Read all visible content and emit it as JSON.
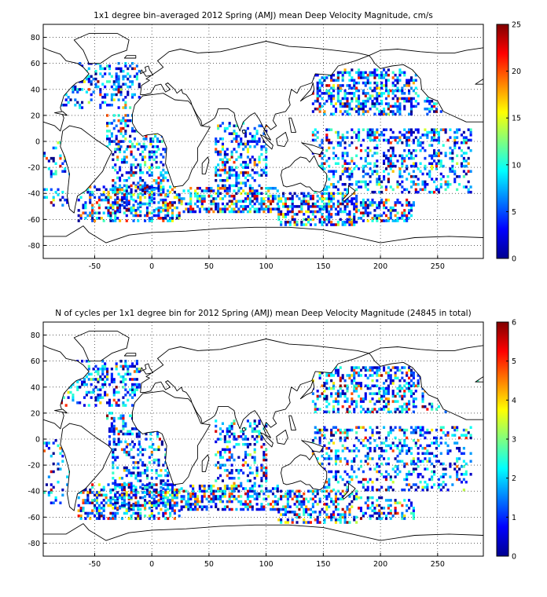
{
  "chart_data": [
    {
      "type": "heatmap",
      "title": "1x1 degree bin–averaged 2012 Spring (AMJ) mean Deep Velocity Magnitude, cm/s",
      "xlabel": "",
      "ylabel": "",
      "xlim": [
        -95,
        290
      ],
      "ylim": [
        -90,
        90
      ],
      "x_ticks": [
        -50,
        0,
        50,
        100,
        150,
        200,
        250
      ],
      "y_ticks": [
        80,
        60,
        40,
        20,
        0,
        -20,
        -40,
        -60,
        -80
      ],
      "grid": true,
      "colormap": "jet",
      "colorbar_range": [
        0,
        25
      ],
      "colorbar_ticks": [
        0,
        5,
        10,
        15,
        20,
        25
      ],
      "dominant_colors": [
        "#0000c8",
        "#00b4ff",
        "#ffe000",
        "#c80000"
      ]
    },
    {
      "type": "heatmap",
      "title": "N of cycles per 1x1 degree bin for 2012 Spring (AMJ) mean Deep Velocity Magnitude (24845 in total)",
      "xlabel": "",
      "ylabel": "",
      "xlim": [
        -95,
        290
      ],
      "ylim": [
        -90,
        90
      ],
      "x_ticks": [
        -50,
        0,
        50,
        100,
        150,
        200,
        250
      ],
      "y_ticks": [
        80,
        60,
        40,
        20,
        0,
        -20,
        -40,
        -60,
        -80
      ],
      "grid": true,
      "colormap": "jet",
      "colorbar_range": [
        0,
        6
      ],
      "colorbar_ticks": [
        0,
        1,
        2,
        3,
        4,
        5,
        6
      ],
      "dominant_colors": [
        "#0000c8",
        "#00b4ff",
        "#ffe000",
        "#c80000"
      ]
    }
  ]
}
